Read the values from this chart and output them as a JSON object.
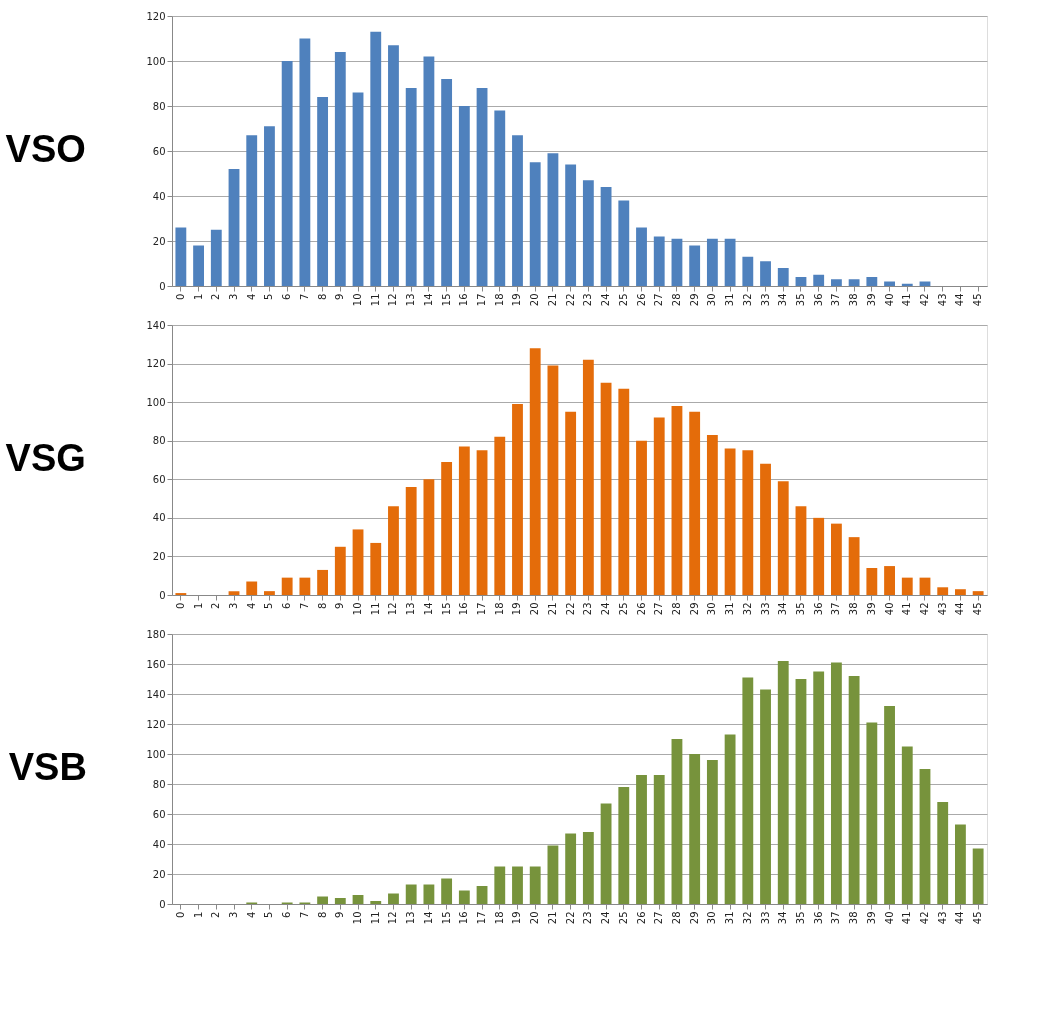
{
  "chart_data": [
    {
      "type": "bar",
      "title": "VSO",
      "categories": [
        "0",
        "1",
        "2",
        "3",
        "4",
        "5",
        "6",
        "7",
        "8",
        "9",
        "10",
        "11",
        "12",
        "13",
        "14",
        "15",
        "16",
        "17",
        "18",
        "19",
        "20",
        "21",
        "22",
        "23",
        "24",
        "25",
        "26",
        "27",
        "28",
        "29",
        "30",
        "31",
        "32",
        "33",
        "34",
        "35",
        "36",
        "37",
        "38",
        "39",
        "40",
        "41",
        "42",
        "43",
        "44",
        "45"
      ],
      "series": [
        {
          "color": "#4f81bd",
          "values": [
            26,
            18,
            25,
            52,
            67,
            71,
            100,
            110,
            84,
            104,
            86,
            113,
            107,
            88,
            102,
            92,
            80,
            88,
            78,
            67,
            55,
            59,
            54,
            47,
            44,
            38,
            26,
            22,
            21,
            18,
            21,
            21,
            13,
            11,
            8,
            4,
            5,
            3,
            3,
            4,
            2,
            1,
            2,
            0,
            0,
            0
          ]
        }
      ],
      "ylim": [
        0,
        120
      ],
      "yticks": [
        0,
        20,
        40,
        60,
        80,
        100,
        120
      ],
      "grid": "y",
      "legend": false
    },
    {
      "type": "bar",
      "title": "VSG",
      "categories": [
        "0",
        "1",
        "2",
        "3",
        "4",
        "5",
        "6",
        "7",
        "8",
        "9",
        "10",
        "11",
        "12",
        "13",
        "14",
        "15",
        "16",
        "17",
        "18",
        "19",
        "20",
        "21",
        "22",
        "23",
        "24",
        "25",
        "26",
        "27",
        "28",
        "29",
        "30",
        "31",
        "32",
        "33",
        "34",
        "35",
        "36",
        "37",
        "38",
        "39",
        "40",
        "41",
        "42",
        "43",
        "44",
        "45"
      ],
      "series": [
        {
          "color": "#e46c0a",
          "values": [
            1,
            0,
            0,
            2,
            7,
            2,
            9,
            9,
            13,
            25,
            34,
            27,
            46,
            56,
            60,
            69,
            77,
            75,
            82,
            99,
            128,
            119,
            95,
            122,
            110,
            107,
            80,
            92,
            98,
            95,
            83,
            76,
            75,
            68,
            59,
            46,
            40,
            37,
            30,
            14,
            15,
            9,
            9,
            4,
            3,
            2
          ]
        }
      ],
      "ylim": [
        0,
        140
      ],
      "yticks": [
        0,
        20,
        40,
        60,
        80,
        100,
        120,
        140
      ],
      "grid": "y",
      "legend": false
    },
    {
      "type": "bar",
      "title": "VSB",
      "categories": [
        "0",
        "1",
        "2",
        "3",
        "4",
        "5",
        "6",
        "7",
        "8",
        "9",
        "10",
        "11",
        "12",
        "13",
        "14",
        "15",
        "16",
        "17",
        "18",
        "19",
        "20",
        "21",
        "22",
        "23",
        "24",
        "25",
        "26",
        "27",
        "28",
        "29",
        "30",
        "31",
        "32",
        "33",
        "34",
        "35",
        "36",
        "37",
        "38",
        "39",
        "40",
        "41",
        "42",
        "43",
        "44",
        "45"
      ],
      "series": [
        {
          "color": "#77933c",
          "values": [
            0,
            0,
            0,
            0,
            1,
            0,
            1,
            1,
            5,
            4,
            6,
            2,
            7,
            13,
            13,
            17,
            9,
            12,
            25,
            25,
            25,
            39,
            47,
            48,
            67,
            78,
            86,
            86,
            110,
            100,
            96,
            113,
            151,
            143,
            162,
            150,
            155,
            161,
            152,
            121,
            132,
            105,
            90,
            68,
            53,
            37
          ]
        }
      ],
      "ylim": [
        0,
        180
      ],
      "yticks": [
        0,
        20,
        40,
        60,
        80,
        100,
        120,
        140,
        160,
        180
      ],
      "grid": "y",
      "legend": false
    }
  ]
}
